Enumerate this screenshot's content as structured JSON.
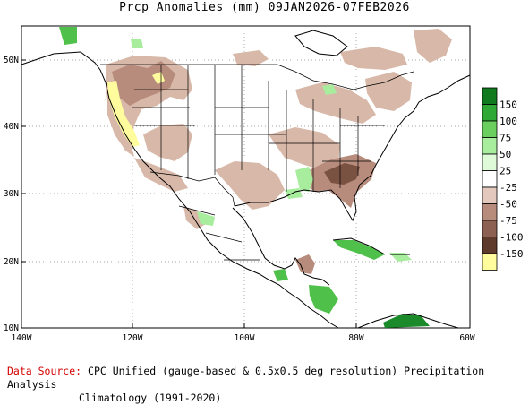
{
  "title": "Prcp Anomalies (mm) 09JAN2026-07FEB2026",
  "footer": {
    "source_label": "Data Source:",
    "source_text": "CPC Unified (gauge-based & 0.5x0.5 deg resolution) Precipitation Analysis",
    "climatology": "Climatology (1991-2020)"
  },
  "axes": {
    "lon_ticks": [
      "140W",
      "120W",
      "100W",
      "80W",
      "60W"
    ],
    "lat_ticks": [
      "50N",
      "40N",
      "30N",
      "20N",
      "10N"
    ]
  },
  "legend": {
    "labels": [
      "150",
      "100",
      "75",
      "50",
      "25",
      "-25",
      "-50",
      "-75",
      "-100",
      "-150"
    ],
    "colors": [
      "#0f7a1e",
      "#2fa836",
      "#6acf5f",
      "#a8ec9e",
      "#dffad8",
      "#ffffff",
      "#e3c8bd",
      "#b88c7d",
      "#8c6052",
      "#5e3a2c",
      "#fffc9e"
    ]
  },
  "colors": {
    "dry_light": "#d8b8a8",
    "dry_mid": "#b88c7d",
    "dry_dark": "#7a5242",
    "extreme_dry": "#fffc9e",
    "wet_light": "#a8ec9e",
    "wet_mid": "#4fc04a",
    "wet_dark": "#1a8a2a"
  }
}
